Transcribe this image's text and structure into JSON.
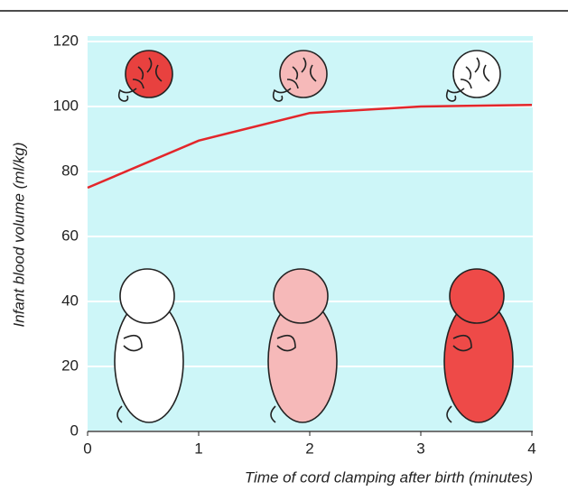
{
  "chart_data": {
    "type": "line",
    "x_label": "Time of cord clamping after birth (minutes)",
    "y_label": "Infant blood volume (ml/kg)",
    "x": [
      0,
      1,
      2,
      3,
      4
    ],
    "values": [
      75,
      89.5,
      98,
      100,
      100.5
    ],
    "color": "#e3262b",
    "xlim": [
      0,
      4
    ],
    "xticks": [
      0,
      1,
      2,
      3,
      4
    ],
    "ylim": [
      0,
      120
    ],
    "yticks": [
      0,
      20,
      40,
      60,
      80,
      100,
      120
    ],
    "grid": true
  }
}
